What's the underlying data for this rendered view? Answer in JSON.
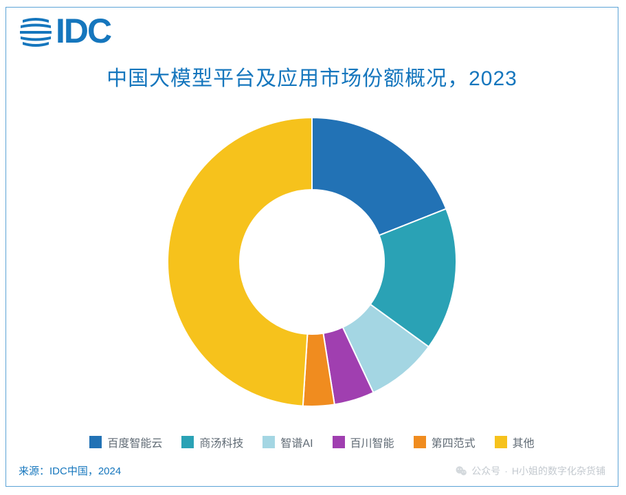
{
  "logo": {
    "text": "IDC",
    "color": "#1576bd"
  },
  "chart": {
    "type": "donut",
    "title": "中国大模型平台及应用市场份额概况，2023",
    "title_color": "#1576bd",
    "title_fontsize": 30,
    "background_color": "#ffffff",
    "border_color": "#5aa2d6",
    "inner_radius_ratio": 0.5,
    "outer_radius_ratio": 1.0,
    "start_angle_deg": 0,
    "slice_gap_color": "#ffffff",
    "slices": [
      {
        "label": "百度智能云",
        "value": 19.0,
        "color": "#2272b5"
      },
      {
        "label": "商汤科技",
        "value": 16.0,
        "color": "#2aa2b5"
      },
      {
        "label": "智谱AI",
        "value": 8.0,
        "color": "#a4d6e3"
      },
      {
        "label": "百川智能",
        "value": 4.5,
        "color": "#a03fb0"
      },
      {
        "label": "第四范式",
        "value": 3.5,
        "color": "#f08c1f"
      },
      {
        "label": "其他",
        "value": 49.0,
        "color": "#f6c21c"
      }
    ],
    "legend": {
      "position": "bottom",
      "swatch_size": 18,
      "fontsize": 16,
      "text_color": "#5f6a74"
    }
  },
  "source": {
    "label": "来源：IDC中国，2024",
    "color": "#1576bd",
    "fontsize": 15
  },
  "watermark": {
    "prefix": "公众号",
    "separator": " · ",
    "name": "H小姐的数字化杂货铺",
    "color": "#c3c9cf",
    "fontsize": 14
  }
}
